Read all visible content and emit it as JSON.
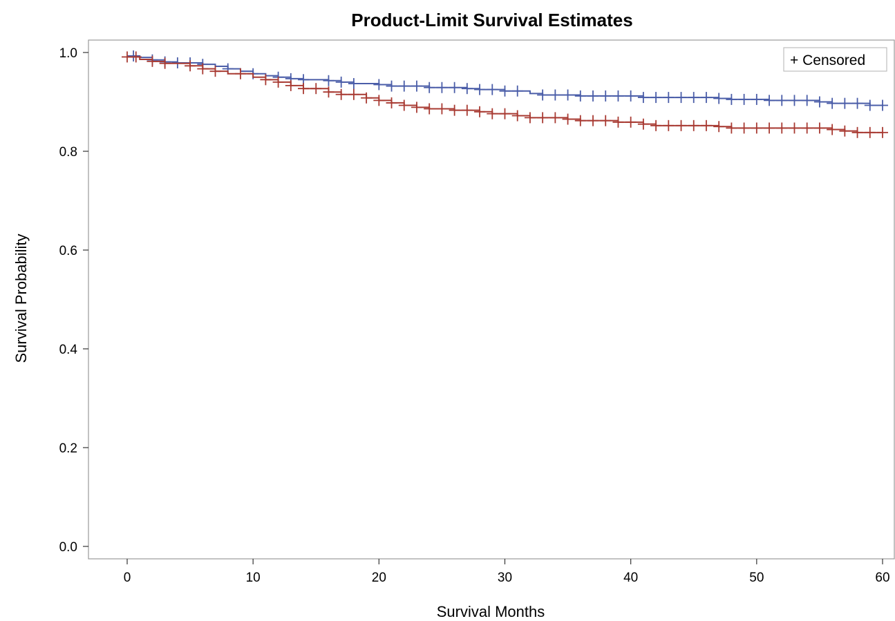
{
  "chart_data": {
    "type": "line",
    "subtype": "kaplan-meier step",
    "title": "Product-Limit Survival Estimates",
    "xlabel": "Survival Months",
    "ylabel": "Survival Probability",
    "xlim": [
      0,
      60
    ],
    "ylim": [
      0,
      1
    ],
    "xticks": [
      0,
      10,
      20,
      30,
      40,
      50,
      60
    ],
    "yticks": [
      0.0,
      0.2,
      0.4,
      0.6,
      0.8,
      1.0
    ],
    "ytick_labels": [
      "0.0",
      "0.2",
      "0.4",
      "0.6",
      "0.8",
      "1.0"
    ],
    "grid": false,
    "legend": {
      "position": "top-right",
      "entries": [
        {
          "symbol": "+",
          "label": "Censored"
        }
      ]
    },
    "series": [
      {
        "color": "#4a5da8",
        "steps": [
          [
            0,
            0.993
          ],
          [
            1,
            0.99
          ],
          [
            2,
            0.985
          ],
          [
            3,
            0.981
          ],
          [
            4,
            0.979
          ],
          [
            6,
            0.976
          ],
          [
            7,
            0.972
          ],
          [
            8,
            0.967
          ],
          [
            9,
            0.962
          ],
          [
            10,
            0.957
          ],
          [
            11,
            0.953
          ],
          [
            12,
            0.95
          ],
          [
            13,
            0.947
          ],
          [
            14,
            0.945
          ],
          [
            16,
            0.943
          ],
          [
            17,
            0.94
          ],
          [
            18,
            0.937
          ],
          [
            20,
            0.935
          ],
          [
            21,
            0.932
          ],
          [
            24,
            0.929
          ],
          [
            27,
            0.927
          ],
          [
            28,
            0.925
          ],
          [
            30,
            0.922
          ],
          [
            32,
            0.917
          ],
          [
            33,
            0.914
          ],
          [
            36,
            0.912
          ],
          [
            41,
            0.909
          ],
          [
            47,
            0.907
          ],
          [
            48,
            0.905
          ],
          [
            51,
            0.903
          ],
          [
            55,
            0.9
          ],
          [
            56,
            0.897
          ],
          [
            59,
            0.893
          ]
        ],
        "censored_x": [
          0.5,
          2,
          3,
          4,
          5,
          6,
          8,
          10,
          12,
          13,
          14,
          16,
          17,
          18,
          20,
          21,
          22,
          23,
          24,
          25,
          26,
          27,
          28,
          29,
          30,
          31,
          33,
          34,
          35,
          36,
          37,
          38,
          39,
          40,
          41,
          42,
          43,
          44,
          45,
          46,
          47,
          48,
          49,
          50,
          51,
          52,
          53,
          54,
          55,
          56,
          57,
          58,
          59,
          60
        ]
      },
      {
        "color": "#a83a32",
        "steps": [
          [
            0,
            0.991
          ],
          [
            1,
            0.986
          ],
          [
            2,
            0.982
          ],
          [
            3,
            0.978
          ],
          [
            5,
            0.973
          ],
          [
            6,
            0.967
          ],
          [
            7,
            0.962
          ],
          [
            8,
            0.957
          ],
          [
            10,
            0.95
          ],
          [
            11,
            0.945
          ],
          [
            12,
            0.94
          ],
          [
            13,
            0.933
          ],
          [
            14,
            0.927
          ],
          [
            16,
            0.92
          ],
          [
            17,
            0.915
          ],
          [
            19,
            0.908
          ],
          [
            20,
            0.903
          ],
          [
            21,
            0.898
          ],
          [
            22,
            0.893
          ],
          [
            23,
            0.889
          ],
          [
            24,
            0.886
          ],
          [
            26,
            0.883
          ],
          [
            28,
            0.88
          ],
          [
            29,
            0.876
          ],
          [
            31,
            0.872
          ],
          [
            32,
            0.868
          ],
          [
            35,
            0.865
          ],
          [
            36,
            0.862
          ],
          [
            39,
            0.859
          ],
          [
            41,
            0.855
          ],
          [
            42,
            0.852
          ],
          [
            47,
            0.85
          ],
          [
            48,
            0.847
          ],
          [
            56,
            0.844
          ],
          [
            57,
            0.841
          ],
          [
            58,
            0.838
          ]
        ],
        "censored_x": [
          0,
          0.7,
          2,
          3,
          5,
          6,
          7,
          9,
          11,
          12,
          13,
          14,
          15,
          16,
          17,
          18,
          19,
          20,
          21,
          22,
          23,
          24,
          25,
          26,
          27,
          28,
          29,
          30,
          31,
          32,
          33,
          34,
          35,
          36,
          37,
          38,
          39,
          40,
          41,
          42,
          43,
          44,
          45,
          46,
          47,
          48,
          49,
          50,
          51,
          52,
          53,
          54,
          55,
          56,
          57,
          58,
          59,
          60
        ]
      }
    ]
  }
}
